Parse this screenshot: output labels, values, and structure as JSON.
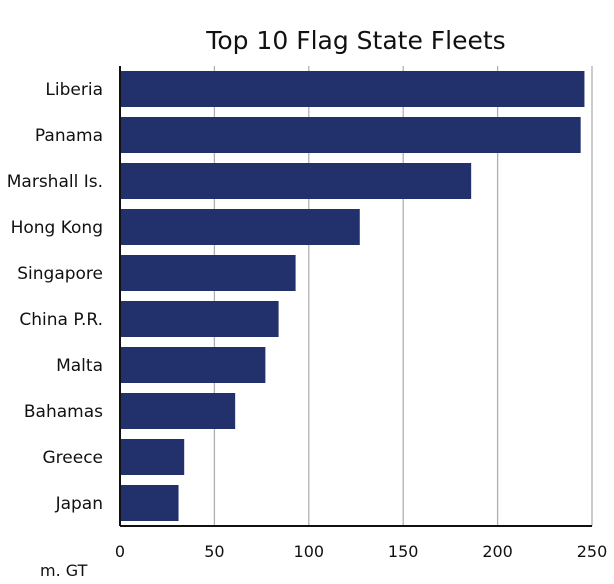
{
  "chart_data": {
    "type": "bar",
    "orientation": "horizontal",
    "title": "Top 10 Flag State Fleets",
    "xlabel": "m. GT",
    "ylabel": "",
    "categories": [
      "Liberia",
      "Panama",
      "Marshall Is.",
      "Hong Kong",
      "Singapore",
      "China P.R.",
      "Malta",
      "Bahamas",
      "Greece",
      "Japan"
    ],
    "values": [
      246,
      244,
      186,
      127,
      93,
      84,
      77,
      61,
      34,
      31
    ],
    "xlim": [
      0,
      250
    ],
    "x_ticks": [
      0,
      50,
      100,
      150,
      200,
      250
    ],
    "grid": "vertical",
    "bar_color": "#22306b",
    "grid_color": "#b0b0b0",
    "legend": "none"
  }
}
